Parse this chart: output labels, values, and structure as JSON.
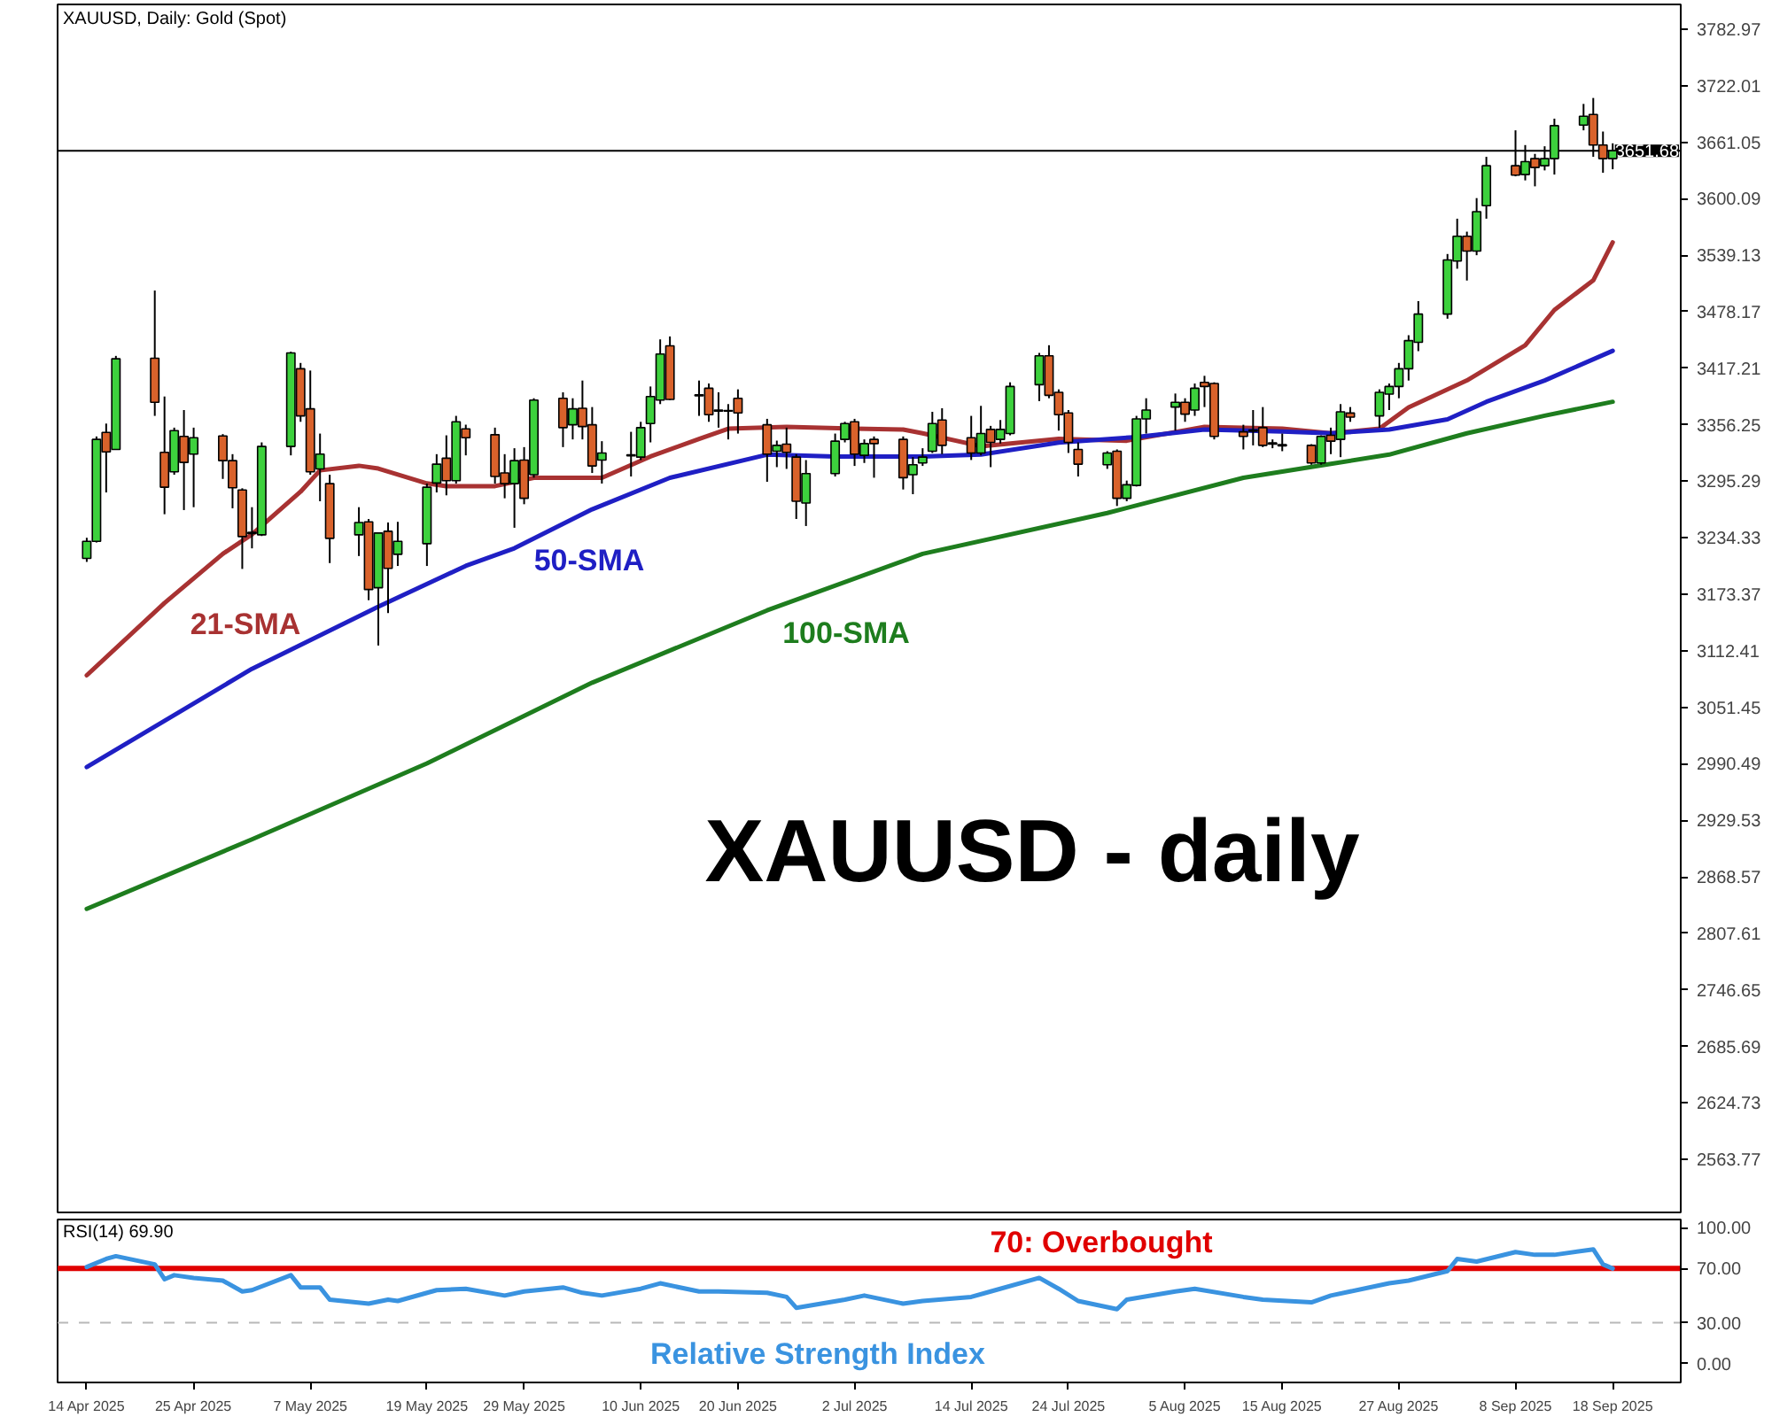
{
  "chart_data": [
    {
      "type": "candlestick",
      "title": "XAUUSD, Daily: Gold (Spot)",
      "annotations": [
        "XAUUSD - daily"
      ],
      "x": [
        "2025-04-14",
        "2025-04-15",
        "2025-04-16",
        "2025-04-17",
        "2025-04-21",
        "2025-04-22",
        "2025-04-23",
        "2025-04-24",
        "2025-04-25",
        "2025-04-28",
        "2025-04-29",
        "2025-04-30",
        "2025-05-01",
        "2025-05-02",
        "2025-05-05",
        "2025-05-06",
        "2025-05-07",
        "2025-05-08",
        "2025-05-09",
        "2025-05-12",
        "2025-05-13",
        "2025-05-14",
        "2025-05-15",
        "2025-05-16",
        "2025-05-19",
        "2025-05-20",
        "2025-05-21",
        "2025-05-22",
        "2025-05-23",
        "2025-05-26",
        "2025-05-27",
        "2025-05-28",
        "2025-05-29",
        "2025-05-30",
        "2025-06-02",
        "2025-06-03",
        "2025-06-04",
        "2025-06-05",
        "2025-06-06",
        "2025-06-09",
        "2025-06-10",
        "2025-06-11",
        "2025-06-12",
        "2025-06-13",
        "2025-06-16",
        "2025-06-17",
        "2025-06-18",
        "2025-06-19",
        "2025-06-20",
        "2025-06-23",
        "2025-06-24",
        "2025-06-25",
        "2025-06-26",
        "2025-06-27",
        "2025-06-30",
        "2025-07-01",
        "2025-07-02",
        "2025-07-03",
        "2025-07-04",
        "2025-07-07",
        "2025-07-08",
        "2025-07-09",
        "2025-07-10",
        "2025-07-11",
        "2025-07-14",
        "2025-07-15",
        "2025-07-16",
        "2025-07-17",
        "2025-07-18",
        "2025-07-21",
        "2025-07-22",
        "2025-07-23",
        "2025-07-24",
        "2025-07-25",
        "2025-07-28",
        "2025-07-29",
        "2025-07-30",
        "2025-07-31",
        "2025-08-01",
        "2025-08-04",
        "2025-08-05",
        "2025-08-06",
        "2025-08-07",
        "2025-08-08",
        "2025-08-11",
        "2025-08-12",
        "2025-08-13",
        "2025-08-14",
        "2025-08-15",
        "2025-08-18",
        "2025-08-19",
        "2025-08-20",
        "2025-08-21",
        "2025-08-22",
        "2025-08-25",
        "2025-08-26",
        "2025-08-27",
        "2025-08-28",
        "2025-08-29",
        "2025-09-01",
        "2025-09-02",
        "2025-09-03",
        "2025-09-04",
        "2025-09-05",
        "2025-09-08",
        "2025-09-09",
        "2025-09-10",
        "2025-09-11",
        "2025-09-12",
        "2025-09-15",
        "2025-09-16",
        "2025-09-17",
        "2025-09-18"
      ],
      "ohlc": [
        [
          3212.1,
          3234.3,
          3208.3,
          3230.5
        ],
        [
          3230.5,
          3343.6,
          3229.2,
          3340.4
        ],
        [
          3348.0,
          3357.5,
          3283.2,
          3327.0
        ],
        [
          3329.6,
          3430.5,
          3329.6,
          3427.4
        ],
        [
          3428.0,
          3501.0,
          3365.8,
          3380.4
        ],
        [
          3326.4,
          3386.7,
          3259.7,
          3288.9
        ],
        [
          3305.5,
          3353.1,
          3302.3,
          3349.9
        ],
        [
          3343.6,
          3372.1,
          3264.2,
          3315.6
        ],
        [
          3324.5,
          3353.1,
          3267.3,
          3342.3
        ],
        [
          3344.2,
          3346.1,
          3297.8,
          3317.5
        ],
        [
          3317.5,
          3324.5,
          3266.1,
          3288.3
        ],
        [
          3285.8,
          3287.7,
          3200.7,
          3235.6
        ],
        [
          3238.8,
          3267.3,
          3222.9,
          3240.1
        ],
        [
          3237.5,
          3337.2,
          3236.2,
          3332.8
        ],
        [
          3332.8,
          3435.0,
          3323.2,
          3433.7
        ],
        [
          3416.6,
          3422.9,
          3359.4,
          3365.8
        ],
        [
          3373.4,
          3414.7,
          3302.3,
          3305.5
        ],
        [
          3308.6,
          3346.7,
          3273.7,
          3324.5
        ],
        [
          3292.7,
          3302.3,
          3207.0,
          3233.7
        ],
        [
          3237.5,
          3267.3,
          3214.6,
          3250.8
        ],
        [
          3251.5,
          3254.6,
          3167.0,
          3178.5
        ],
        [
          3180.4,
          3239.4,
          3118.1,
          3239.4
        ],
        [
          3241.3,
          3250.8,
          3153.1,
          3201.3
        ],
        [
          3216.5,
          3251.5,
          3203.9,
          3230.5
        ],
        [
          3228.0,
          3292.7,
          3203.9,
          3288.9
        ],
        [
          3293.4,
          3324.5,
          3283.2,
          3313.7
        ],
        [
          3320.1,
          3344.8,
          3280.1,
          3295.9
        ],
        [
          3295.9,
          3365.8,
          3292.7,
          3359.4
        ],
        [
          3351.8,
          3356.3,
          3323.2,
          3342.3
        ],
        [
          3345.5,
          3353.1,
          3292.7,
          3300.4
        ],
        [
          3304.2,
          3324.5,
          3276.9,
          3292.7
        ],
        [
          3292.7,
          3330.9,
          3245.1,
          3317.5
        ],
        [
          3318.1,
          3332.1,
          3270.5,
          3276.9
        ],
        [
          3302.3,
          3384.8,
          3299.1,
          3382.9
        ],
        [
          3384.8,
          3391.2,
          3332.1,
          3353.1
        ],
        [
          3356.2,
          3384.8,
          3340.4,
          3373.4
        ],
        [
          3374.0,
          3403.9,
          3340.4,
          3354.3
        ],
        [
          3356.2,
          3375.3,
          3304.2,
          3311.8
        ],
        [
          3318.1,
          3338.5,
          3292.8,
          3325.8
        ],
        [
          3322.6,
          3348.6,
          3300.4,
          3323.9
        ],
        [
          3321.3,
          3359.4,
          3318.1,
          3353.1
        ],
        [
          3357.5,
          3397.5,
          3337.2,
          3386.7
        ],
        [
          3382.9,
          3448.3,
          3378.5,
          3432.5
        ],
        [
          3441.3,
          3451.5,
          3382.9,
          3383.6
        ],
        [
          3388.6,
          3403.9,
          3365.8,
          3387.4
        ],
        [
          3395.6,
          3400.7,
          3359.4,
          3367.0
        ],
        [
          3372.1,
          3391.2,
          3353.1,
          3370.9
        ],
        [
          3370.9,
          3378.5,
          3340.4,
          3371.5
        ],
        [
          3384.8,
          3394.4,
          3346.7,
          3369.0
        ],
        [
          3356.2,
          3362.6,
          3294.7,
          3324.5
        ],
        [
          3327.7,
          3339.1,
          3310.5,
          3334.0
        ],
        [
          3335.3,
          3353.1,
          3308.6,
          3326.4
        ],
        [
          3321.3,
          3324.5,
          3254.6,
          3273.7
        ],
        [
          3271.8,
          3318.1,
          3247.0,
          3303.5
        ],
        [
          3303.5,
          3346.7,
          3300.4,
          3338.5
        ],
        [
          3340.4,
          3359.4,
          3337.2,
          3357.5
        ],
        [
          3359.4,
          3362.6,
          3311.8,
          3324.5
        ],
        [
          3323.2,
          3340.4,
          3315.0,
          3335.9
        ],
        [
          3340.4,
          3343.6,
          3299.1,
          3335.9
        ],
        [
          3340.4,
          3343.6,
          3286.4,
          3299.1
        ],
        [
          3302.3,
          3321.3,
          3281.3,
          3313.1
        ],
        [
          3315.0,
          3330.9,
          3311.8,
          3321.3
        ],
        [
          3327.7,
          3370.2,
          3325.8,
          3357.5
        ],
        [
          3361.3,
          3374.0,
          3324.5,
          3334.0
        ],
        [
          3342.3,
          3365.8,
          3318.2,
          3325.8
        ],
        [
          3325.8,
          3376.6,
          3323.2,
          3346.7
        ],
        [
          3351.2,
          3355.0,
          3310.5,
          3337.2
        ],
        [
          3340.4,
          3361.3,
          3336.0,
          3351.2
        ],
        [
          3346.7,
          3402.0,
          3344.8,
          3397.5
        ],
        [
          3399.4,
          3433.7,
          3381.7,
          3430.6
        ],
        [
          3430.6,
          3442.0,
          3384.8,
          3388.0
        ],
        [
          3391.2,
          3394.4,
          3349.9,
          3367.1
        ],
        [
          3369.0,
          3372.1,
          3325.8,
          3337.2
        ],
        [
          3329.6,
          3337.2,
          3300.4,
          3313.7
        ],
        [
          3313.1,
          3327.7,
          3308.6,
          3325.8
        ],
        [
          3327.7,
          3329.6,
          3268.6,
          3276.9
        ],
        [
          3276.9,
          3296.0,
          3273.7,
          3291.5
        ],
        [
          3290.8,
          3365.8,
          3289.6,
          3362.6
        ],
        [
          3362.6,
          3384.8,
          3346.7,
          3372.1
        ],
        [
          3375.3,
          3389.9,
          3349.9,
          3380.4
        ],
        [
          3380.4,
          3384.8,
          3359.4,
          3367.7
        ],
        [
          3372.1,
          3400.7,
          3365.8,
          3395.6
        ],
        [
          3402.0,
          3409.0,
          3375.3,
          3397.5
        ],
        [
          3400.7,
          3402.0,
          3340.4,
          3343.6
        ],
        [
          3348.6,
          3356.2,
          3329.6,
          3343.6
        ],
        [
          3349.3,
          3372.1,
          3334.0,
          3350.5
        ],
        [
          3353.1,
          3375.3,
          3332.1,
          3334.0
        ],
        [
          3335.3,
          3340.4,
          3330.9,
          3336.6
        ],
        [
          3333.4,
          3346.7,
          3327.7,
          3334.7
        ],
        [
          3334.0,
          3335.3,
          3313.1,
          3315.0
        ],
        [
          3315.0,
          3344.8,
          3313.1,
          3343.6
        ],
        [
          3344.8,
          3353.1,
          3324.5,
          3338.5
        ],
        [
          3340.4,
          3378.5,
          3321.3,
          3370.2
        ],
        [
          3368.9,
          3375.3,
          3359.4,
          3364.5
        ],
        [
          3365.8,
          3394.4,
          3353.1,
          3391.2
        ],
        [
          3389.3,
          3400.7,
          3372.1,
          3397.5
        ],
        [
          3397.5,
          3422.9,
          3384.8,
          3416.6
        ],
        [
          3416.6,
          3452.8,
          3403.9,
          3447.0
        ],
        [
          3445.1,
          3489.6,
          3435.6,
          3475.6
        ],
        [
          3475.6,
          3540.4,
          3470.6,
          3534.0
        ],
        [
          3532.8,
          3578.5,
          3524.5,
          3559.5
        ],
        [
          3559.5,
          3564.5,
          3511.8,
          3543.6
        ],
        [
          3543.6,
          3600.7,
          3539.1,
          3586.1
        ],
        [
          3592.5,
          3645.2,
          3578.5,
          3635.6
        ],
        [
          3635.6,
          3673.8,
          3624.2,
          3625.5
        ],
        [
          3626.1,
          3657.9,
          3619.8,
          3640.1
        ],
        [
          3643.3,
          3648.4,
          3613.4,
          3633.7
        ],
        [
          3635.6,
          3656.6,
          3630.6,
          3643.3
        ],
        [
          3643.3,
          3686.4,
          3626.1,
          3678.8
        ],
        [
          3679.5,
          3702.3,
          3673.8,
          3689.0
        ],
        [
          3690.9,
          3708.7,
          3645.2,
          3657.9
        ],
        [
          3657.9,
          3672.5,
          3628.0,
          3643.3
        ],
        [
          3643.3,
          3659.8,
          3631.8,
          3651.68
        ]
      ],
      "colors": [
        "#3dd13d",
        "#3dd13d",
        "#d9622b",
        "#3dd13d",
        "#d9622b",
        "#d9622b",
        "#3dd13d",
        "#d9622b",
        "#3dd13d",
        "#d9622b",
        "#d9622b",
        "#d9622b",
        "#3dd13d",
        "#3dd13d",
        "#3dd13d",
        "#d9622b",
        "#d9622b",
        "#3dd13d",
        "#d9622b",
        "#3dd13d",
        "#d9622b",
        "#3dd13d",
        "#d9622b",
        "#3dd13d",
        "#3dd13d",
        "#3dd13d",
        "#d9622b",
        "#3dd13d",
        "#d9622b",
        "#d9622b",
        "#d9622b",
        "#3dd13d",
        "#d9622b",
        "#3dd13d",
        "#d9622b",
        "#3dd13d",
        "#d9622b",
        "#d9622b",
        "#3dd13d",
        "#3dd13d",
        "#3dd13d",
        "#3dd13d",
        "#3dd13d",
        "#d9622b",
        "#d9622b",
        "#d9622b",
        "#d9622b",
        "#3dd13d",
        "#d9622b",
        "#d9622b",
        "#3dd13d",
        "#d9622b",
        "#d9622b",
        "#3dd13d",
        "#3dd13d",
        "#3dd13d",
        "#d9622b",
        "#3dd13d",
        "#d9622b",
        "#d9622b",
        "#3dd13d",
        "#3dd13d",
        "#3dd13d",
        "#d9622b",
        "#d9622b",
        "#3dd13d",
        "#d9622b",
        "#3dd13d",
        "#3dd13d",
        "#3dd13d",
        "#d9622b",
        "#d9622b",
        "#d9622b",
        "#d9622b",
        "#3dd13d",
        "#d9622b",
        "#3dd13d",
        "#3dd13d",
        "#3dd13d",
        "#3dd13d",
        "#d9622b",
        "#3dd13d",
        "#d9622b",
        "#d9622b",
        "#d9622b",
        "#3dd13d",
        "#d9622b",
        "#3dd13d",
        "#3dd13d",
        "#d9622b",
        "#3dd13d",
        "#d9622b",
        "#3dd13d",
        "#d9622b",
        "#3dd13d",
        "#3dd13d",
        "#3dd13d",
        "#3dd13d",
        "#3dd13d",
        "#3dd13d",
        "#3dd13d",
        "#d9622b",
        "#3dd13d",
        "#3dd13d",
        "#d9622b",
        "#3dd13d",
        "#d9622b",
        "#3dd13d",
        "#3dd13d",
        "#3dd13d",
        "#d9622b",
        "#d9622b",
        "#3dd13d"
      ],
      "series": [
        {
          "type": "line",
          "name": "21-SMA",
          "color": "#a83232",
          "x": [
            "2025-04-14",
            "2025-04-22",
            "2025-04-28",
            "2025-05-01",
            "2025-05-06",
            "2025-05-08",
            "2025-05-12",
            "2025-05-14",
            "2025-05-19",
            "2025-05-21",
            "2025-05-26",
            "2025-05-30",
            "2025-06-03",
            "2025-06-06",
            "2025-06-11",
            "2025-06-16",
            "2025-06-19",
            "2025-06-25",
            "2025-07-02",
            "2025-07-07",
            "2025-07-09",
            "2025-07-15",
            "2025-07-23",
            "2025-07-30",
            "2025-08-07",
            "2025-08-15",
            "2025-08-20",
            "2025-08-25",
            "2025-08-28",
            "2025-09-03",
            "2025-09-09",
            "2025-09-12",
            "2025-09-16",
            "2025-09-18"
          ],
          "values": [
            3086,
            3164,
            3217,
            3238,
            3284,
            3307,
            3312,
            3309,
            3293,
            3290,
            3290,
            3299,
            3299,
            3299,
            3322,
            3341,
            3352,
            3354,
            3352,
            3351,
            3347,
            3333,
            3341,
            3339,
            3354,
            3352,
            3347,
            3352,
            3375,
            3404,
            3442,
            3480,
            3512,
            3553
          ]
        },
        {
          "type": "line",
          "name": "50-SMA",
          "color": "#1f1fc4",
          "x": [
            "2025-04-14",
            "2025-05-01",
            "2025-05-14",
            "2025-05-23",
            "2025-05-28",
            "2025-06-05",
            "2025-06-13",
            "2025-06-23",
            "2025-06-30",
            "2025-07-09",
            "2025-07-15",
            "2025-07-23",
            "2025-07-31",
            "2025-08-07",
            "2025-08-15",
            "2025-08-20",
            "2025-08-26",
            "2025-09-01",
            "2025-09-05",
            "2025-09-11",
            "2025-09-18"
          ],
          "values": [
            2987,
            3093,
            3160,
            3204,
            3223,
            3265,
            3299,
            3324,
            3322,
            3322,
            3324,
            3337,
            3343,
            3351,
            3349,
            3347,
            3351,
            3362,
            3381,
            3404,
            3436
          ]
        },
        {
          "type": "line",
          "name": "100-SMA",
          "color": "#1e7d1e",
          "x": [
            "2025-04-14",
            "2025-05-01",
            "2025-05-19",
            "2025-06-05",
            "2025-06-23",
            "2025-07-09",
            "2025-07-28",
            "2025-08-11",
            "2025-08-20",
            "2025-08-26",
            "2025-09-03",
            "2025-09-11",
            "2025-09-18"
          ],
          "values": [
            2834,
            2909,
            2991,
            3078,
            3156,
            3217,
            3261,
            3299,
            3314,
            3324,
            3347,
            3366,
            3381
          ]
        }
      ],
      "xlim": [
        "2025-04-11",
        "2025-09-25"
      ],
      "ylim": [
        2506.6,
        3809.6
      ],
      "yticks": [
        2563.77,
        2624.73,
        2685.69,
        2746.65,
        2807.61,
        2868.57,
        2929.53,
        2990.49,
        3051.45,
        3112.41,
        3173.37,
        3234.33,
        3295.29,
        3356.25,
        3417.21,
        3478.17,
        3539.13,
        3600.09,
        3661.05,
        3722.01,
        3782.97
      ],
      "ref_lines": [
        {
          "axis": "y",
          "value": 3651.68,
          "label": "3651.68",
          "color": "#000000"
        }
      ],
      "tick_labels": "y"
    },
    {
      "type": "line",
      "title": "RSI(14) 69.90",
      "annotations": [
        "Relative Strength Index"
      ],
      "x": [
        "2025-04-14",
        "2025-04-16",
        "2025-04-17",
        "2025-04-21",
        "2025-04-22",
        "2025-04-23",
        "2025-04-25",
        "2025-04-28",
        "2025-04-30",
        "2025-05-01",
        "2025-05-05",
        "2025-05-06",
        "2025-05-08",
        "2025-05-09",
        "2025-05-13",
        "2025-05-15",
        "2025-05-16",
        "2025-05-20",
        "2025-05-23",
        "2025-05-27",
        "2025-05-29",
        "2025-06-02",
        "2025-06-04",
        "2025-06-06",
        "2025-06-10",
        "2025-06-12",
        "2025-06-16",
        "2025-06-18",
        "2025-06-23",
        "2025-06-25",
        "2025-06-26",
        "2025-07-01",
        "2025-07-03",
        "2025-07-07",
        "2025-07-09",
        "2025-07-14",
        "2025-07-16",
        "2025-07-21",
        "2025-07-23",
        "2025-07-25",
        "2025-07-29",
        "2025-07-30",
        "2025-08-04",
        "2025-08-06",
        "2025-08-11",
        "2025-08-13",
        "2025-08-18",
        "2025-08-20",
        "2025-08-22",
        "2025-08-26",
        "2025-08-28",
        "2025-09-01",
        "2025-09-02",
        "2025-09-04",
        "2025-09-08",
        "2025-09-10",
        "2025-09-12",
        "2025-09-16",
        "2025-09-17",
        "2025-09-18"
      ],
      "series": [
        {
          "color": "#3a93e0",
          "values": [
            71,
            77,
            79,
            73,
            62,
            65,
            63,
            61,
            53,
            54,
            65,
            56,
            56,
            47,
            44,
            47,
            46,
            54,
            55,
            50,
            53,
            56,
            52,
            50,
            55,
            59,
            53,
            53,
            52,
            49,
            41,
            47,
            50,
            44,
            46,
            49,
            53,
            63,
            55,
            46,
            40,
            47,
            53,
            55,
            49,
            47,
            45,
            50,
            53,
            59,
            61,
            68,
            77,
            75,
            82,
            80,
            80,
            84,
            73,
            69.9
          ]
        }
      ],
      "xlim": [
        "2025-04-11",
        "2025-09-25"
      ],
      "ylim": [
        -14,
        106
      ],
      "xticks": [
        {
          "value": "2025-04-14",
          "label": "14 Apr 2025"
        },
        {
          "value": "2025-04-25",
          "label": "25 Apr 2025"
        },
        {
          "value": "2025-05-07",
          "label": "7 May 2025"
        },
        {
          "value": "2025-05-19",
          "label": "19 May 2025"
        },
        {
          "value": "2025-05-29",
          "label": "29 May 2025"
        },
        {
          "value": "2025-06-10",
          "label": "10 Jun 2025"
        },
        {
          "value": "2025-06-20",
          "label": "20 Jun 2025"
        },
        {
          "value": "2025-07-02",
          "label": "2 Jul 2025"
        },
        {
          "value": "2025-07-14",
          "label": "14 Jul 2025"
        },
        {
          "value": "2025-07-24",
          "label": "24 Jul 2025"
        },
        {
          "value": "2025-08-05",
          "label": "5 Aug 2025"
        },
        {
          "value": "2025-08-15",
          "label": "15 Aug 2025"
        },
        {
          "value": "2025-08-27",
          "label": "27 Aug 2025"
        },
        {
          "value": "2025-09-08",
          "label": "8 Sep 2025"
        },
        {
          "value": "2025-09-18",
          "label": "18 Sep 2025"
        }
      ],
      "yticks": [
        {
          "value": 0,
          "label": "0.00"
        },
        {
          "value": 30,
          "label": "30.00"
        },
        {
          "value": 70,
          "label": "70.00"
        },
        {
          "value": 100,
          "label": "100.00"
        }
      ],
      "ref_lines": [
        {
          "axis": "y",
          "value": 70,
          "label": "70: Overbought",
          "color": "#e00000"
        },
        {
          "axis": "y",
          "value": 30,
          "color": "#b8b8b8",
          "line_style": "dashed"
        }
      ]
    }
  ]
}
